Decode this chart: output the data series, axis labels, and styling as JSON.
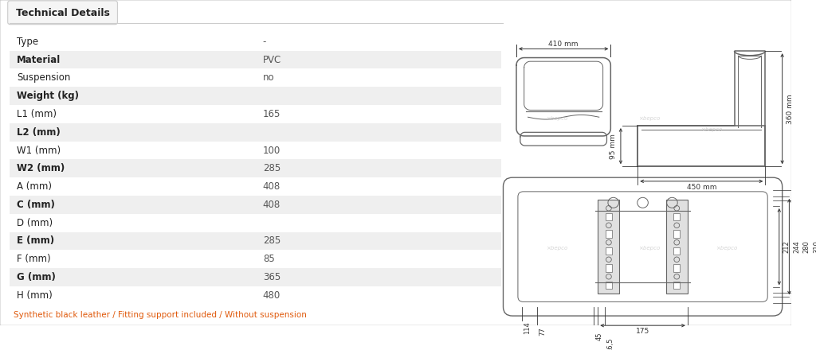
{
  "tab_label": "Technical Details",
  "rows": [
    {
      "label": "Type",
      "value": "-",
      "shaded": false
    },
    {
      "label": "Material",
      "value": "PVC",
      "shaded": true
    },
    {
      "label": "Suspension",
      "value": "no",
      "shaded": false
    },
    {
      "label": "Weight (kg)",
      "value": "",
      "shaded": true
    },
    {
      "label": "L1 (mm)",
      "value": "165",
      "shaded": false
    },
    {
      "label": "L2 (mm)",
      "value": "",
      "shaded": true
    },
    {
      "label": "W1 (mm)",
      "value": "100",
      "shaded": false
    },
    {
      "label": "W2 (mm)",
      "value": "285",
      "shaded": true
    },
    {
      "label": "A (mm)",
      "value": "408",
      "shaded": false
    },
    {
      "label": "C (mm)",
      "value": "408",
      "shaded": true
    },
    {
      "label": "D (mm)",
      "value": "",
      "shaded": false
    },
    {
      "label": "E (mm)",
      "value": "285",
      "shaded": true
    },
    {
      "label": "F (mm)",
      "value": "85",
      "shaded": false
    },
    {
      "label": "G (mm)",
      "value": "365",
      "shaded": true
    },
    {
      "label": "H (mm)",
      "value": "480",
      "shaded": false
    }
  ],
  "footer": "Synthetic black leather / Fitting support included / Without suspension",
  "bg_color": "#ffffff",
  "shaded_row_color": "#efefef",
  "unshaded_row_color": "#ffffff",
  "label_color": "#222222",
  "value_color": "#555555",
  "footer_color": "#e05a0c",
  "line_color": "#666666",
  "dim_color": "#333333"
}
